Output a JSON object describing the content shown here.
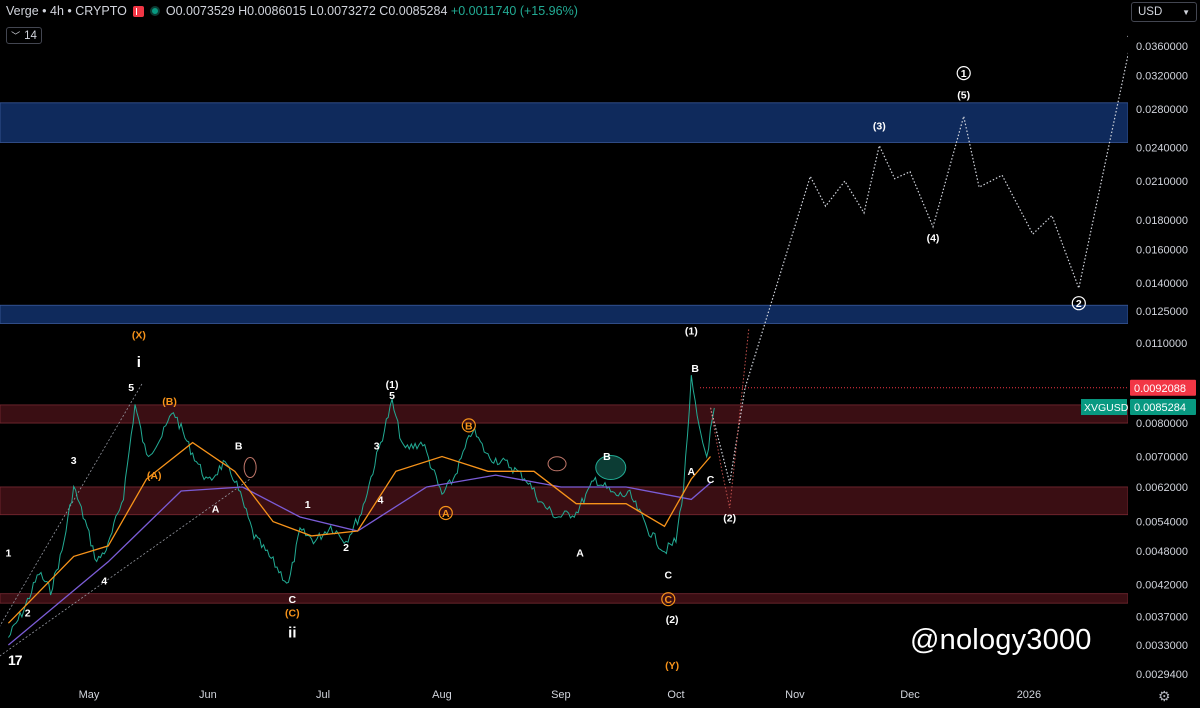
{
  "header": {
    "symbol_title": "Verge • 4h • CRYPTO",
    "ohlc": {
      "open": "O0.0073529",
      "high": "H0.0086015",
      "low": "L0.0073272",
      "close": "C0.0085284",
      "change": "+0.0011740 (+15.96%)"
    },
    "interval_badge": "14"
  },
  "currency_selector": "USD",
  "watermark": "@nology3000",
  "colors": {
    "background": "#000000",
    "zone_blue": "#0f2a5c",
    "zone_red": "#3a0e13",
    "up": "#22ab94",
    "price_tag_red": "#f23645",
    "price_tag_green": "#089981",
    "ma_orange": "#f7931a",
    "ma_purple": "#7b5cd6"
  },
  "chart_data": {
    "type": "line",
    "title": "Verge • 4h • CRYPTO",
    "price_axis_labels": [
      "0.0360000",
      "0.0320000",
      "0.0280000",
      "0.0240000",
      "0.0210000",
      "0.0180000",
      "0.0160000",
      "0.0140000",
      "0.0125000",
      "0.0110000",
      "0.0092088",
      "0.0085284",
      "0.0080000",
      "0.0070000",
      "0.0062000",
      "0.0054000",
      "0.0048000",
      "0.0042000",
      "0.0037000",
      "0.0033000",
      "0.0029400"
    ],
    "price_axis_scale": "log",
    "time_axis_labels": [
      "May",
      "Jun",
      "Jul",
      "Aug",
      "Sep",
      "Oct",
      "Nov",
      "Dec",
      "2026"
    ],
    "price_tags": [
      {
        "label": "",
        "value": "0.0092088",
        "color": "red"
      },
      {
        "label": "XVGUSD",
        "value": "0.0085284",
        "color": "green"
      }
    ],
    "zones": [
      {
        "color": "blue",
        "from": 0.0245,
        "to": 0.0287
      },
      {
        "color": "blue",
        "from": 0.0119,
        "to": 0.0128
      },
      {
        "color": "red",
        "from": 0.008,
        "to": 0.0086
      },
      {
        "color": "red",
        "from": 0.00555,
        "to": 0.0062
      },
      {
        "color": "red",
        "from": 0.0039,
        "to": 0.00405
      }
    ],
    "price_series": [
      {
        "t": "2025-04-10",
        "p": 0.0034
      },
      {
        "t": "2025-04-14",
        "p": 0.0038
      },
      {
        "t": "2025-04-18",
        "p": 0.0044
      },
      {
        "t": "2025-04-21",
        "p": 0.0041
      },
      {
        "t": "2025-04-24",
        "p": 0.0048
      },
      {
        "t": "2025-04-27",
        "p": 0.0062
      },
      {
        "t": "2025-04-30",
        "p": 0.0054
      },
      {
        "t": "2025-05-03",
        "p": 0.0046
      },
      {
        "t": "2025-05-06",
        "p": 0.0049
      },
      {
        "t": "2025-05-10",
        "p": 0.006
      },
      {
        "t": "2025-05-13",
        "p": 0.0086
      },
      {
        "t": "2025-05-16",
        "p": 0.007
      },
      {
        "t": "2025-05-20",
        "p": 0.0076
      },
      {
        "t": "2025-05-23",
        "p": 0.0084
      },
      {
        "t": "2025-05-27",
        "p": 0.0073
      },
      {
        "t": "2025-06-01",
        "p": 0.0063
      },
      {
        "t": "2025-06-05",
        "p": 0.0068
      },
      {
        "t": "2025-06-08",
        "p": 0.0064
      },
      {
        "t": "2025-06-13",
        "p": 0.0051
      },
      {
        "t": "2025-06-18",
        "p": 0.0046
      },
      {
        "t": "2025-06-22",
        "p": 0.0042
      },
      {
        "t": "2025-06-25",
        "p": 0.0052
      },
      {
        "t": "2025-06-29",
        "p": 0.005
      },
      {
        "t": "2025-07-03",
        "p": 0.0053
      },
      {
        "t": "2025-07-07",
        "p": 0.005
      },
      {
        "t": "2025-07-11",
        "p": 0.0056
      },
      {
        "t": "2025-07-15",
        "p": 0.007
      },
      {
        "t": "2025-07-19",
        "p": 0.0087
      },
      {
        "t": "2025-07-22",
        "p": 0.0072
      },
      {
        "t": "2025-07-27",
        "p": 0.0074
      },
      {
        "t": "2025-08-01",
        "p": 0.006
      },
      {
        "t": "2025-08-04",
        "p": 0.0064
      },
      {
        "t": "2025-08-09",
        "p": 0.0078
      },
      {
        "t": "2025-08-13",
        "p": 0.007
      },
      {
        "t": "2025-08-18",
        "p": 0.0068
      },
      {
        "t": "2025-08-23",
        "p": 0.0064
      },
      {
        "t": "2025-08-27",
        "p": 0.0058
      },
      {
        "t": "2025-08-31",
        "p": 0.0055
      },
      {
        "t": "2025-09-05",
        "p": 0.0056
      },
      {
        "t": "2025-09-10",
        "p": 0.0064
      },
      {
        "t": "2025-09-15",
        "p": 0.006
      },
      {
        "t": "2025-09-19",
        "p": 0.006
      },
      {
        "t": "2025-09-24",
        "p": 0.0052
      },
      {
        "t": "2025-09-28",
        "p": 0.0048
      },
      {
        "t": "2025-10-01",
        "p": 0.005
      },
      {
        "t": "2025-10-03",
        "p": 0.0062
      },
      {
        "t": "2025-10-05",
        "p": 0.0095
      },
      {
        "t": "2025-10-07",
        "p": 0.0078
      },
      {
        "t": "2025-10-09",
        "p": 0.007
      },
      {
        "t": "2025-10-11",
        "p": 0.0085
      }
    ],
    "ma_orange": [
      {
        "t": "2025-04-10",
        "p": 0.0036
      },
      {
        "t": "2025-04-27",
        "p": 0.0047
      },
      {
        "t": "2025-05-06",
        "p": 0.0049
      },
      {
        "t": "2025-05-16",
        "p": 0.0064
      },
      {
        "t": "2025-05-28",
        "p": 0.0074
      },
      {
        "t": "2025-06-08",
        "p": 0.0066
      },
      {
        "t": "2025-06-18",
        "p": 0.0054
      },
      {
        "t": "2025-06-28",
        "p": 0.0051
      },
      {
        "t": "2025-07-10",
        "p": 0.0052
      },
      {
        "t": "2025-07-20",
        "p": 0.0066
      },
      {
        "t": "2025-08-01",
        "p": 0.007
      },
      {
        "t": "2025-08-13",
        "p": 0.0066
      },
      {
        "t": "2025-08-25",
        "p": 0.0066
      },
      {
        "t": "2025-09-05",
        "p": 0.0058
      },
      {
        "t": "2025-09-18",
        "p": 0.0058
      },
      {
        "t": "2025-09-28",
        "p": 0.0053
      },
      {
        "t": "2025-10-05",
        "p": 0.0064
      },
      {
        "t": "2025-10-10",
        "p": 0.007
      }
    ],
    "ma_purple": [
      {
        "t": "2025-04-10",
        "p": 0.0033
      },
      {
        "t": "2025-05-06",
        "p": 0.0046
      },
      {
        "t": "2025-05-25",
        "p": 0.0061
      },
      {
        "t": "2025-06-10",
        "p": 0.0062
      },
      {
        "t": "2025-06-25",
        "p": 0.0055
      },
      {
        "t": "2025-07-10",
        "p": 0.0052
      },
      {
        "t": "2025-07-28",
        "p": 0.0062
      },
      {
        "t": "2025-08-15",
        "p": 0.0065
      },
      {
        "t": "2025-09-01",
        "p": 0.0062
      },
      {
        "t": "2025-09-18",
        "p": 0.0062
      },
      {
        "t": "2025-10-05",
        "p": 0.0059
      },
      {
        "t": "2025-10-10",
        "p": 0.0063
      }
    ],
    "projection_path": [
      {
        "t": "2025-10-10",
        "p": 0.0085
      },
      {
        "t": "2025-10-15",
        "p": 0.0063
      },
      {
        "t": "2025-10-19",
        "p": 0.0092
      },
      {
        "t": "2025-11-05",
        "p": 0.0214
      },
      {
        "t": "2025-11-09",
        "p": 0.019
      },
      {
        "t": "2025-11-14",
        "p": 0.021
      },
      {
        "t": "2025-11-19",
        "p": 0.0185
      },
      {
        "t": "2025-11-23",
        "p": 0.0242
      },
      {
        "t": "2025-11-27",
        "p": 0.0212
      },
      {
        "t": "2025-12-01",
        "p": 0.0218
      },
      {
        "t": "2025-12-07",
        "p": 0.0175
      },
      {
        "t": "2025-12-15",
        "p": 0.0272
      },
      {
        "t": "2025-12-19",
        "p": 0.0205
      },
      {
        "t": "2025-12-25",
        "p": 0.0215
      },
      {
        "t": "2026-01-02",
        "p": 0.017
      },
      {
        "t": "2026-01-07",
        "p": 0.0183
      },
      {
        "t": "2026-01-14",
        "p": 0.0137
      },
      {
        "t": "2026-01-28",
        "p": 0.0378
      }
    ],
    "wave_labels": [
      {
        "text": "(X)",
        "t": "2025-05-14",
        "p": 0.0112,
        "color": "orange"
      },
      {
        "text": "i",
        "t": "2025-05-14",
        "p": 0.01,
        "color": "white",
        "big": true
      },
      {
        "text": "5",
        "t": "2025-05-12",
        "p": 0.0091,
        "color": "white"
      },
      {
        "text": "(B)",
        "t": "2025-05-22",
        "p": 0.0086,
        "color": "orange"
      },
      {
        "text": "B",
        "t": "2025-06-09",
        "p": 0.0072,
        "color": "white"
      },
      {
        "text": "(A)",
        "t": "2025-05-18",
        "p": 0.0064,
        "color": "orange"
      },
      {
        "text": "3",
        "t": "2025-04-27",
        "p": 0.0068,
        "color": "white"
      },
      {
        "text": "A",
        "t": "2025-06-03",
        "p": 0.0056,
        "color": "white"
      },
      {
        "text": "1",
        "t": "2025-04-10",
        "p": 0.0047,
        "color": "white"
      },
      {
        "text": "4",
        "t": "2025-05-05",
        "p": 0.0042,
        "color": "white"
      },
      {
        "text": "2",
        "t": "2025-04-15",
        "p": 0.0037,
        "color": "white"
      },
      {
        "text": "1",
        "t": "2025-06-27",
        "p": 0.0057,
        "color": "white"
      },
      {
        "text": "2",
        "t": "2025-07-07",
        "p": 0.0048,
        "color": "white"
      },
      {
        "text": "C",
        "t": "2025-06-23",
        "p": 0.0039,
        "color": "white"
      },
      {
        "text": "(C)",
        "t": "2025-06-23",
        "p": 0.0037,
        "color": "orange"
      },
      {
        "text": "ii",
        "t": "2025-06-23",
        "p": 0.0034,
        "color": "white",
        "big": true
      },
      {
        "text": "(1)",
        "t": "2025-07-19",
        "p": 0.0092,
        "color": "white"
      },
      {
        "text": "5",
        "t": "2025-07-19",
        "p": 0.0088,
        "color": "white"
      },
      {
        "text": "3",
        "t": "2025-07-15",
        "p": 0.0072,
        "color": "white"
      },
      {
        "text": "4",
        "t": "2025-07-16",
        "p": 0.0058,
        "color": "white"
      },
      {
        "text": "B",
        "t": "2025-08-08",
        "p": 0.0078,
        "color": "orange",
        "circled": true
      },
      {
        "text": "A",
        "t": "2025-08-02",
        "p": 0.0055,
        "color": "orange",
        "circled": true
      },
      {
        "text": "B",
        "t": "2025-09-13",
        "p": 0.0069,
        "color": "white"
      },
      {
        "text": "A",
        "t": "2025-09-06",
        "p": 0.0047,
        "color": "white"
      },
      {
        "text": "(1)",
        "t": "2025-10-05",
        "p": 0.0114,
        "color": "white"
      },
      {
        "text": "B",
        "t": "2025-10-06",
        "p": 0.0098,
        "color": "white"
      },
      {
        "text": "A",
        "t": "2025-10-05",
        "p": 0.0065,
        "color": "white"
      },
      {
        "text": "C",
        "t": "2025-10-10",
        "p": 0.0063,
        "color": "white"
      },
      {
        "text": "C",
        "t": "2025-09-29",
        "p": 0.0043,
        "color": "white"
      },
      {
        "text": "C",
        "t": "2025-09-29",
        "p": 0.0039,
        "color": "orange",
        "circled": true
      },
      {
        "text": "(2)",
        "t": "2025-09-30",
        "p": 0.0036,
        "color": "white"
      },
      {
        "text": "(Y)",
        "t": "2025-09-30",
        "p": 0.003,
        "color": "orange"
      },
      {
        "text": "(2)",
        "t": "2025-10-15",
        "p": 0.0054,
        "color": "white"
      },
      {
        "text": "(3)",
        "t": "2025-11-23",
        "p": 0.0258,
        "color": "white"
      },
      {
        "text": "(4)",
        "t": "2025-12-07",
        "p": 0.0165,
        "color": "white"
      },
      {
        "text": "(5)",
        "t": "2025-12-15",
        "p": 0.0292,
        "color": "white"
      },
      {
        "text": "1",
        "t": "2025-12-15",
        "p": 0.0318,
        "color": "white",
        "circled": true
      },
      {
        "text": "2",
        "t": "2026-01-14",
        "p": 0.0127,
        "color": "white",
        "circled": true
      }
    ],
    "grid": false,
    "legend": "none"
  }
}
